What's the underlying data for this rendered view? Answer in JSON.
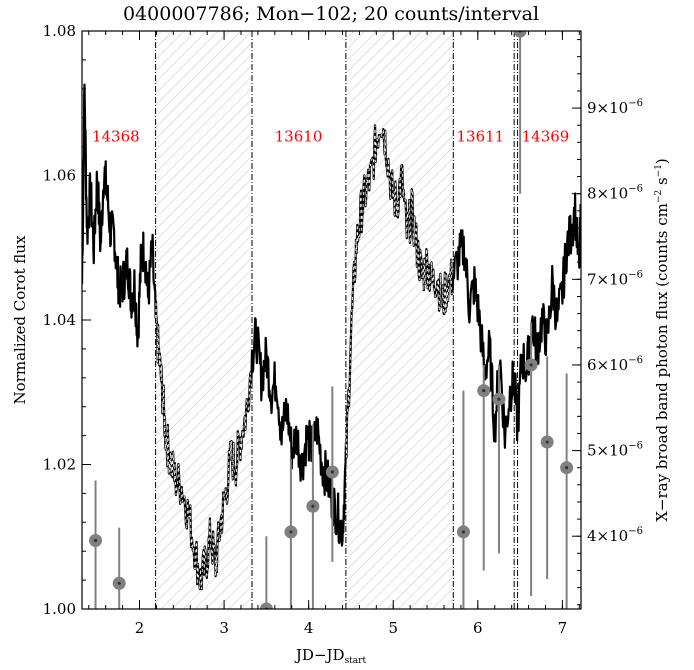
{
  "chart_data": {
    "type": "line",
    "title": "0400007786; Mon−102; 20 counts/interval",
    "xlabel": "JD−JD",
    "xlabel_sub": "start",
    "ylabel": "Normalized Corot flux",
    "y2label": "X−ray broad band photon flux (counts cm",
    "y2label_sup1": "−2",
    "y2label_mid": " s",
    "y2label_sup2": "−1",
    "y2label_end": ")",
    "xlim": [
      1.32,
      7.22
    ],
    "ylim": [
      1.0,
      1.08
    ],
    "y2lim": [
      3.15e-06,
      9.9e-06
    ],
    "x_ticks": [
      2,
      3,
      4,
      5,
      6,
      7
    ],
    "y_ticks": [
      "1.00",
      "1.02",
      "1.04",
      "1.06",
      "1.08"
    ],
    "y_tick_values": [
      1.0,
      1.02,
      1.04,
      1.06,
      1.08
    ],
    "y2_ticks": [
      {
        "v": 4e-06,
        "m": "4",
        "e": "−6"
      },
      {
        "v": 5e-06,
        "m": "5",
        "e": "−6"
      },
      {
        "v": 6e-06,
        "m": "6",
        "e": "−6"
      },
      {
        "v": 7e-06,
        "m": "7",
        "e": "−6"
      },
      {
        "v": 8e-06,
        "m": "8",
        "e": "−6"
      },
      {
        "v": 9e-06,
        "m": "9",
        "e": "−6"
      }
    ],
    "hatched_intervals": [
      [
        2.19,
        3.33
      ],
      [
        4.44,
        5.71
      ]
    ],
    "boundaries": [
      2.19,
      3.33,
      4.44,
      5.71,
      6.43,
      6.47
    ],
    "observation_labels": [
      {
        "text": "14368",
        "x": 1.72,
        "y": 1.0647
      },
      {
        "text": "13610",
        "x": 3.88,
        "y": 1.0647
      },
      {
        "text": "13611",
        "x": 6.03,
        "y": 1.0647
      },
      {
        "text": "14369",
        "x": 6.8,
        "y": 1.0647
      }
    ],
    "corot_series": {
      "name": "Corot",
      "points": [
        [
          1.32,
          1.045
        ],
        [
          1.35,
          1.072
        ],
        [
          1.38,
          1.052
        ],
        [
          1.42,
          1.058
        ],
        [
          1.46,
          1.05
        ],
        [
          1.5,
          1.06
        ],
        [
          1.54,
          1.05
        ],
        [
          1.58,
          1.061
        ],
        [
          1.62,
          1.057
        ],
        [
          1.66,
          1.052
        ],
        [
          1.7,
          1.052
        ],
        [
          1.74,
          1.046
        ],
        [
          1.78,
          1.044
        ],
        [
          1.82,
          1.046
        ],
        [
          1.86,
          1.048
        ],
        [
          1.9,
          1.043
        ],
        [
          1.94,
          1.045
        ],
        [
          1.98,
          1.038
        ],
        [
          2.02,
          1.049
        ],
        [
          2.06,
          1.05
        ],
        [
          2.1,
          1.043
        ],
        [
          2.15,
          1.05
        ],
        [
          2.19,
          1.04
        ],
        [
          2.23,
          1.035
        ],
        [
          2.27,
          1.03
        ],
        [
          2.31,
          1.024
        ],
        [
          2.36,
          1.021
        ],
        [
          2.42,
          1.018
        ],
        [
          2.5,
          1.017
        ],
        [
          2.58,
          1.013
        ],
        [
          2.66,
          1.008
        ],
        [
          2.72,
          1.004
        ],
        [
          2.78,
          1.006
        ],
        [
          2.84,
          1.01
        ],
        [
          2.9,
          1.006
        ],
        [
          2.96,
          1.012
        ],
        [
          3.02,
          1.016
        ],
        [
          3.08,
          1.021
        ],
        [
          3.14,
          1.02
        ],
        [
          3.2,
          1.024
        ],
        [
          3.26,
          1.027
        ],
        [
          3.33,
          1.035
        ],
        [
          3.38,
          1.038
        ],
        [
          3.44,
          1.032
        ],
        [
          3.5,
          1.035
        ],
        [
          3.56,
          1.03
        ],
        [
          3.62,
          1.032
        ],
        [
          3.68,
          1.024
        ],
        [
          3.74,
          1.028
        ],
        [
          3.8,
          1.022
        ],
        [
          3.86,
          1.024
        ],
        [
          3.92,
          1.02
        ],
        [
          3.98,
          1.024
        ],
        [
          4.04,
          1.022
        ],
        [
          4.1,
          1.025
        ],
        [
          4.16,
          1.02
        ],
        [
          4.22,
          1.018
        ],
        [
          4.28,
          1.015
        ],
        [
          4.34,
          1.013
        ],
        [
          4.4,
          1.011
        ],
        [
          4.44,
          1.02
        ],
        [
          4.5,
          1.038
        ],
        [
          4.56,
          1.05
        ],
        [
          4.62,
          1.055
        ],
        [
          4.68,
          1.058
        ],
        [
          4.74,
          1.06
        ],
        [
          4.8,
          1.065
        ],
        [
          4.86,
          1.068
        ],
        [
          4.92,
          1.064
        ],
        [
          4.98,
          1.058
        ],
        [
          5.04,
          1.056
        ],
        [
          5.1,
          1.06
        ],
        [
          5.16,
          1.052
        ],
        [
          5.22,
          1.055
        ],
        [
          5.28,
          1.05
        ],
        [
          5.34,
          1.046
        ],
        [
          5.4,
          1.048
        ],
        [
          5.46,
          1.045
        ],
        [
          5.52,
          1.046
        ],
        [
          5.58,
          1.042
        ],
        [
          5.64,
          1.045
        ],
        [
          5.71,
          1.046
        ],
        [
          5.78,
          1.049
        ],
        [
          5.84,
          1.05
        ],
        [
          5.9,
          1.042
        ],
        [
          5.96,
          1.045
        ],
        [
          6.02,
          1.04
        ],
        [
          6.08,
          1.033
        ],
        [
          6.14,
          1.036
        ],
        [
          6.2,
          1.025
        ],
        [
          6.26,
          1.035
        ],
        [
          6.32,
          1.024
        ],
        [
          6.38,
          1.03
        ],
        [
          6.43,
          1.032
        ],
        [
          6.47,
          1.025
        ],
        [
          6.52,
          1.035
        ],
        [
          6.58,
          1.033
        ],
        [
          6.64,
          1.04
        ],
        [
          6.7,
          1.036
        ],
        [
          6.76,
          1.04
        ],
        [
          6.82,
          1.037
        ],
        [
          6.88,
          1.045
        ],
        [
          6.94,
          1.04
        ],
        [
          7.0,
          1.044
        ],
        [
          7.05,
          1.05
        ],
        [
          7.1,
          1.052
        ],
        [
          7.15,
          1.055
        ],
        [
          7.2,
          1.047
        ],
        [
          7.22,
          1.055
        ]
      ]
    },
    "xray_series": {
      "name": "X-ray",
      "points": [
        {
          "x": 1.48,
          "y": 3.95e-06,
          "lo": 3.15e-06,
          "hi": 4.65e-06
        },
        {
          "x": 1.76,
          "y": 3.45e-06,
          "lo": 3.15e-06,
          "hi": 4.1e-06
        },
        {
          "x": 3.5,
          "y": 3.15e-06,
          "lo": 3.15e-06,
          "hi": 4e-06
        },
        {
          "x": 3.79,
          "y": 4.05e-06,
          "lo": 3.15e-06,
          "hi": 4.9e-06
        },
        {
          "x": 4.05,
          "y": 4.35e-06,
          "lo": 3.15e-06,
          "hi": 5.3e-06
        },
        {
          "x": 4.28,
          "y": 4.75e-06,
          "lo": 3.7e-06,
          "hi": 5.75e-06
        },
        {
          "x": 5.83,
          "y": 4.05e-06,
          "lo": 3.15e-06,
          "hi": 5.7e-06
        },
        {
          "x": 6.07,
          "y": 5.7e-06,
          "lo": 3.6e-06,
          "hi": 6e-06
        },
        {
          "x": 6.25,
          "y": 5.6e-06,
          "lo": 3.8e-06,
          "hi": 6e-06
        },
        {
          "x": 6.5,
          "y": 9.9e-06,
          "lo": 8e-06,
          "hi": 9.9e-06
        },
        {
          "x": 6.63,
          "y": 6e-06,
          "lo": 3.3e-06,
          "hi": 6.5e-06
        },
        {
          "x": 6.82,
          "y": 5.1e-06,
          "lo": 3.5e-06,
          "hi": 6.1e-06
        },
        {
          "x": 7.05,
          "y": 4.8e-06,
          "lo": 3.15e-06,
          "hi": 5.9e-06
        }
      ]
    },
    "colors": {
      "line": "#000000",
      "xray": "#808080",
      "labels": "#ff0000",
      "hatch": "#c8c8c8"
    }
  }
}
